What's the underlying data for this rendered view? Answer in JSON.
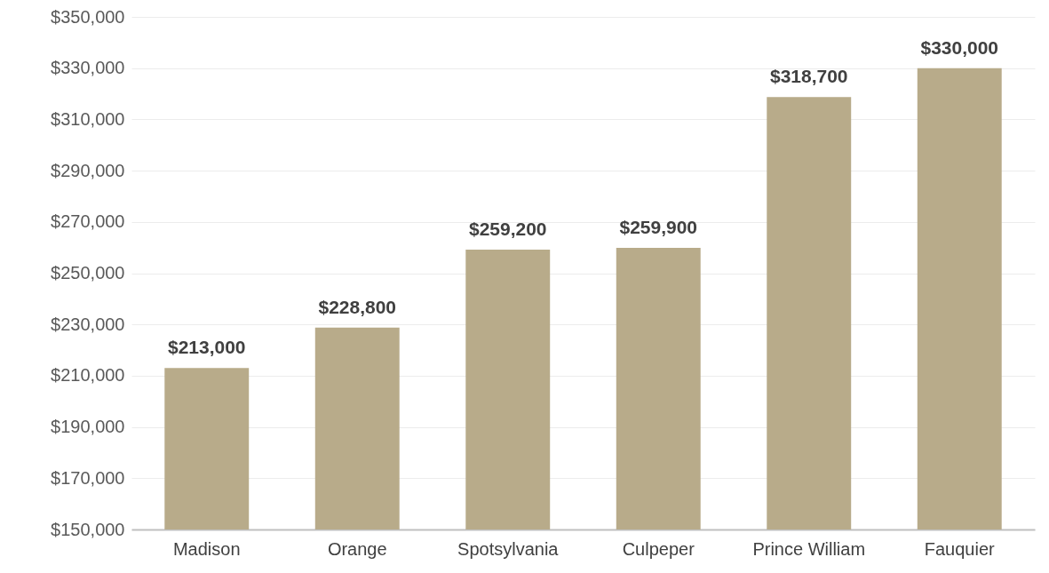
{
  "chart_data": {
    "type": "bar",
    "categories": [
      "Madison",
      "Orange",
      "Spotsylvania",
      "Culpeper",
      "Prince William",
      "Fauquier"
    ],
    "values": [
      213000,
      228800,
      259200,
      259900,
      318700,
      330000
    ],
    "value_labels": [
      "$213,000",
      "$228,800",
      "$259,200",
      "$259,900",
      "$318,700",
      "$330,000"
    ],
    "color": "#b8ab8a",
    "ylim": [
      150000,
      350000
    ],
    "yticks": [
      {
        "value": 150000,
        "label": "$150,000"
      },
      {
        "value": 170000,
        "label": "$170,000"
      },
      {
        "value": 190000,
        "label": "$190,000"
      },
      {
        "value": 210000,
        "label": "$210,000"
      },
      {
        "value": 230000,
        "label": "$230,000"
      },
      {
        "value": 250000,
        "label": "$250,000"
      },
      {
        "value": 270000,
        "label": "$270,000"
      },
      {
        "value": 290000,
        "label": "$290,000"
      },
      {
        "value": 310000,
        "label": "$310,000"
      },
      {
        "value": 330000,
        "label": "$330,000"
      },
      {
        "value": 350000,
        "label": "$350,000"
      }
    ],
    "grid": "y"
  }
}
